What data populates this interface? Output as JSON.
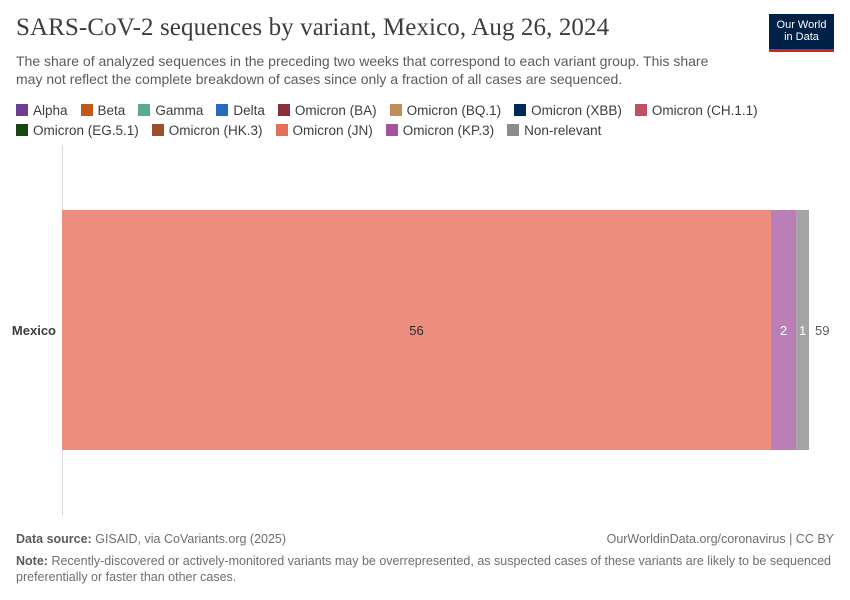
{
  "header": {
    "title": "SARS-CoV-2 sequences by variant, Mexico, Aug 26, 2024",
    "subtitle": "The share of analyzed sequences in the preceding two weeks that correspond to each variant group. This share may not reflect the complete breakdown of cases since only a fraction of all cases are sequenced.",
    "logo_line1": "Our World",
    "logo_line2": "in Data"
  },
  "legend": [
    {
      "label": "Alpha",
      "color": "#6d3e91"
    },
    {
      "label": "Beta",
      "color": "#c05917"
    },
    {
      "label": "Gamma",
      "color": "#58ac8c"
    },
    {
      "label": "Delta",
      "color": "#286bbb"
    },
    {
      "label": "Omicron (BA)",
      "color": "#883039"
    },
    {
      "label": "Omicron (BQ.1)",
      "color": "#bc8e5a"
    },
    {
      "label": "Omicron (XBB)",
      "color": "#00295b"
    },
    {
      "label": "Omicron (CH.1.1)",
      "color": "#c15065"
    },
    {
      "label": "Omicron (EG.5.1)",
      "color": "#18470f"
    },
    {
      "label": "Omicron (HK.3)",
      "color": "#9a5129"
    },
    {
      "label": "Omicron (JN)",
      "color": "#e56e5a"
    },
    {
      "label": "Omicron (KP.3)",
      "color": "#a2559c"
    },
    {
      "label": "Non-relevant",
      "color": "#8c8c8c"
    }
  ],
  "chart_data": {
    "type": "bar",
    "orientation": "horizontal",
    "stacked": true,
    "categories": [
      "Mexico"
    ],
    "series": [
      {
        "name": "Omicron (JN)",
        "values": [
          56
        ],
        "color": "#ec8d7e",
        "label_color": "#2b2b2b"
      },
      {
        "name": "Omicron (KP.3)",
        "values": [
          2
        ],
        "color": "#bb7fb7",
        "label_color": "#ffffff"
      },
      {
        "name": "Non-relevant",
        "values": [
          1
        ],
        "color": "#a4a4a4",
        "label_color": "#ffffff"
      }
    ],
    "totals": [
      59
    ],
    "xlim": [
      0,
      59
    ],
    "xlabel": "",
    "ylabel": ""
  },
  "footer": {
    "source_label": "Data source:",
    "source_text": "GISAID, via CoVariants.org (2025)",
    "url": "OurWorldinData.org/coronavirus | CC BY",
    "note_label": "Note:",
    "note_text": "Recently-discovered or actively-monitored variants may be overrepresented, as suspected cases of these variants are likely to be sequenced preferentially or faster than other cases."
  }
}
